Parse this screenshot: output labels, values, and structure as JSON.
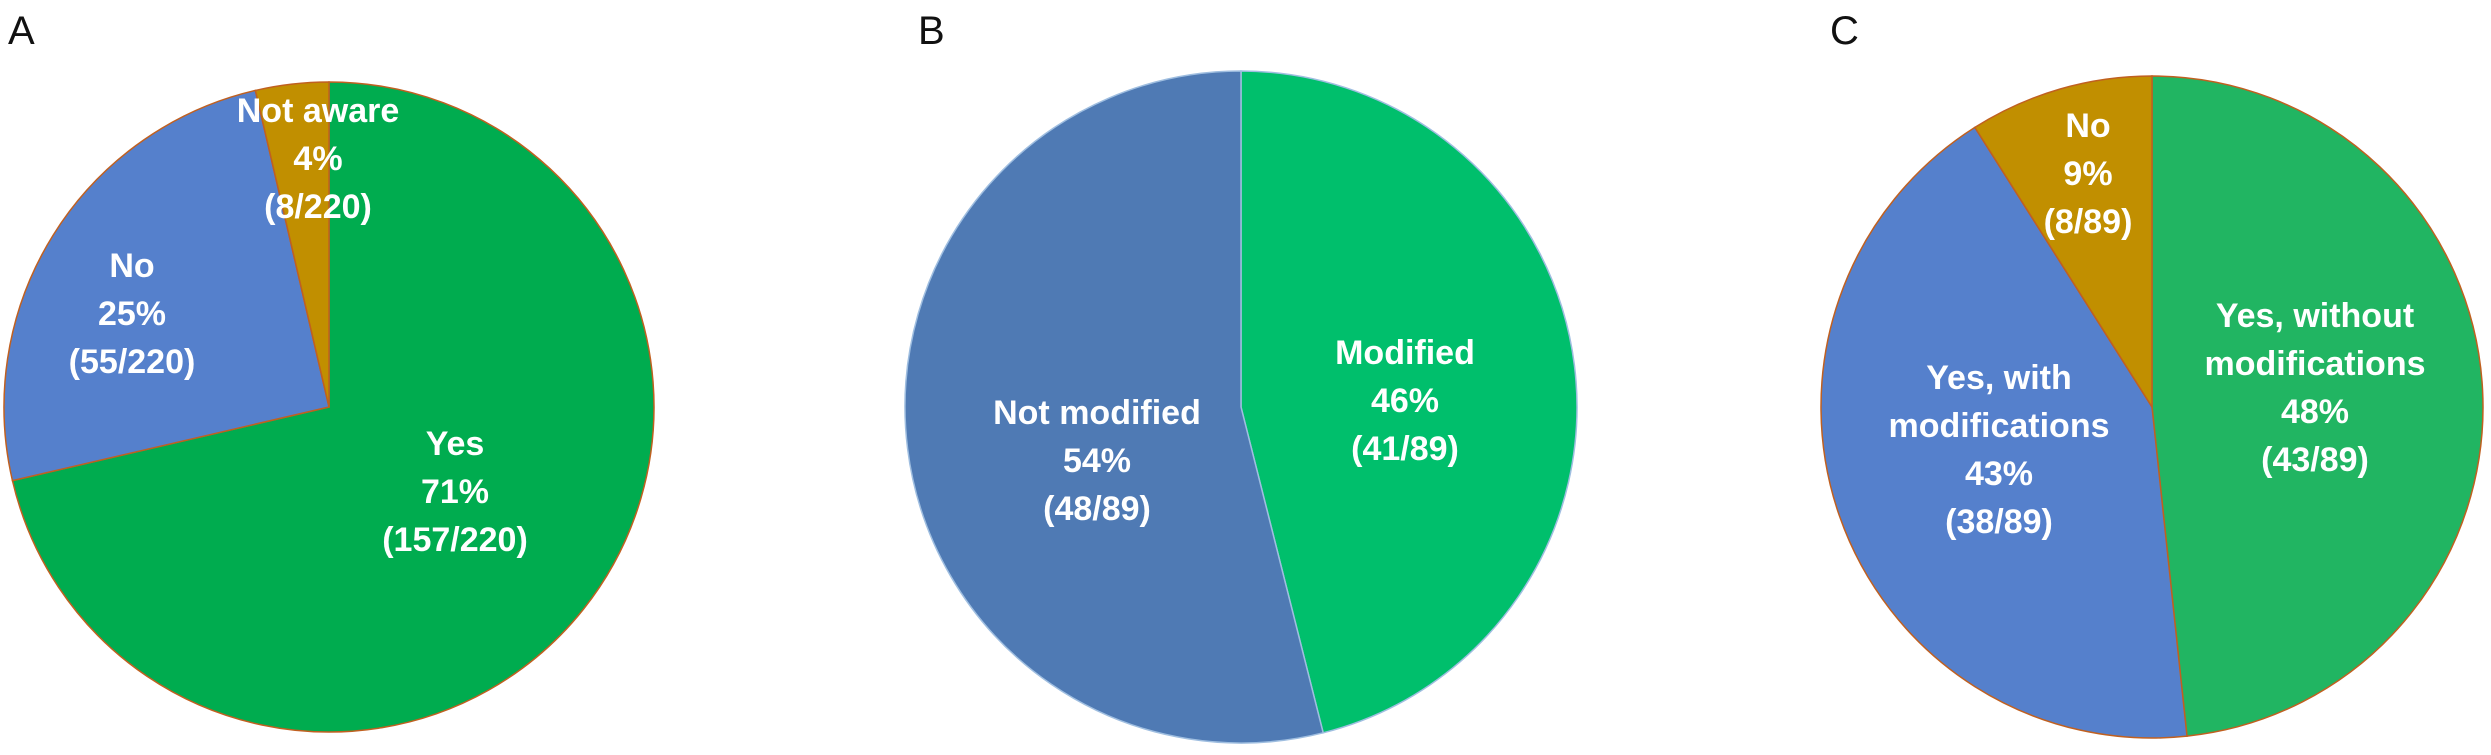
{
  "chart_data": [
    {
      "type": "pie",
      "panel": "A",
      "slices": [
        {
          "label": "Yes",
          "percent_text": "71%",
          "count_text": "(157/220)",
          "value": 157,
          "color": "#00AC4F"
        },
        {
          "label": "No",
          "percent_text": "25%",
          "count_text": "(55/220)",
          "value": 55,
          "color": "#5580CC"
        },
        {
          "label": "Not aware",
          "percent_text": "4%",
          "count_text": "(8/220)",
          "value": 8,
          "color": "#C18F00"
        }
      ]
    },
    {
      "type": "pie",
      "panel": "B",
      "slices": [
        {
          "label": "Modified",
          "percent_text": "46%",
          "count_text": "(41/89)",
          "value": 41,
          "color": "#00BF6C"
        },
        {
          "label": "Not modified",
          "percent_text": "54%",
          "count_text": "(48/89)",
          "value": 48,
          "color": "#4F7AB4"
        }
      ]
    },
    {
      "type": "pie",
      "panel": "C",
      "slices": [
        {
          "label": "Yes, without modifications",
          "percent_text": "48%",
          "count_text": "(43/89)",
          "value": 43,
          "color": "#21B562"
        },
        {
          "label": "Yes, with modifications",
          "percent_text": "43%",
          "count_text": "(38/89)",
          "value": 38,
          "color": "#5580CC"
        },
        {
          "label": "No",
          "percent_text": "9%",
          "count_text": "(8/89)",
          "value": 8,
          "color": "#C18F00"
        }
      ]
    }
  ]
}
